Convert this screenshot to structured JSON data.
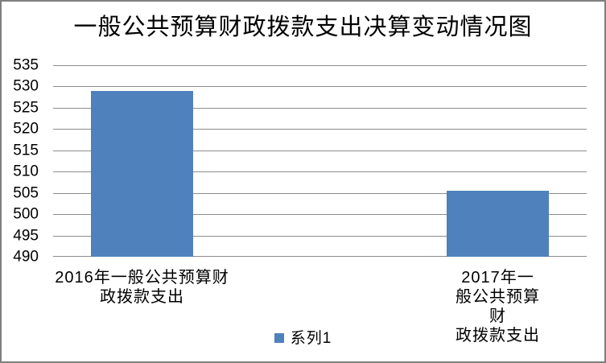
{
  "chart_data": {
    "type": "bar",
    "title": "一般公共预算财政拨款支出决算变动情况图",
    "categories": [
      "2016年一般公共预算财政拨款支出",
      "2017年一般公共预算财政拨款支出"
    ],
    "category_label_lines": [
      [
        "2016年一般公共预算财",
        "政拨款支出"
      ],
      [
        "2017年一般公共预算财",
        "政拨款支出"
      ]
    ],
    "series": [
      {
        "name": "系列1",
        "values": [
          529,
          505.5
        ]
      }
    ],
    "ylim": [
      490,
      535
    ],
    "ytick_step": 5,
    "yticks": [
      490,
      495,
      500,
      505,
      510,
      515,
      520,
      525,
      530,
      535
    ],
    "grid": true,
    "legend": {
      "position": "bottom",
      "entries": [
        "系列1"
      ]
    },
    "xlabel": "",
    "ylabel": "",
    "colors": {
      "bar": "#4F81BD",
      "gridline": "#8C8C8C",
      "axis_line": "#8C8C8C",
      "frame_border": "#7F7F7F",
      "text": "#000000",
      "background": "#FFFFFF"
    }
  }
}
